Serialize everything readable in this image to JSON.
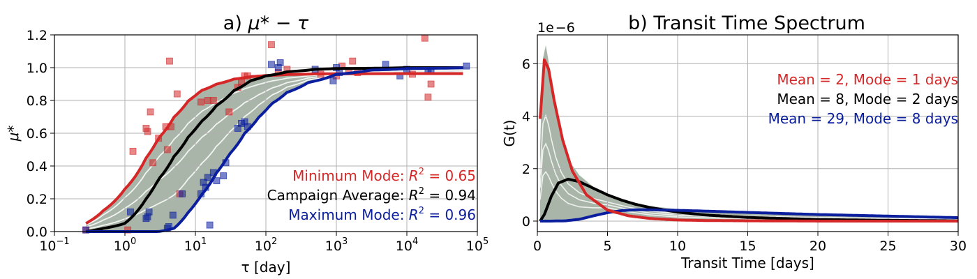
{
  "colors": {
    "red": "#d62728",
    "black": "#000000",
    "blue": "#0a1e9e",
    "band": "#a9b5a9"
  },
  "chart_data": [
    {
      "panel": "a",
      "type": "scatter",
      "title_prefix": "a) ",
      "title_math": "μ* − τ",
      "xlabel": "τ [day]",
      "ylabel": "μ*",
      "xscale": "log",
      "xlim": [
        0.1,
        100000
      ],
      "ylim": [
        0,
        1.2
      ],
      "grid": true,
      "xticks": [
        {
          "base": "10",
          "exp": "−1"
        },
        {
          "base": "10",
          "exp": "0"
        },
        {
          "base": "10",
          "exp": "1"
        },
        {
          "base": "10",
          "exp": "2"
        },
        {
          "base": "10",
          "exp": "3"
        },
        {
          "base": "10",
          "exp": "4"
        },
        {
          "base": "10",
          "exp": "5"
        }
      ],
      "yticks": [
        "0.0",
        "0.2",
        "0.4",
        "0.6",
        "0.8",
        "1.0",
        "1.2"
      ],
      "annotations": [
        {
          "label": "Minimum Mode: ",
          "value": "= 0.65",
          "color": "#d62728"
        },
        {
          "label": "Campaign Average: ",
          "value": "= 0.94",
          "color": "#000000"
        },
        {
          "label": "Maximum Mode: ",
          "value": "= 0.96",
          "color": "#0a1e9e"
        }
      ],
      "series": [
        {
          "color": "#d62728",
          "style": "line",
          "x": [
            0.28,
            0.5,
            1,
            2,
            3,
            5,
            8,
            12,
            20,
            35,
            60,
            100,
            200,
            500,
            1000,
            10000,
            70000
          ],
          "y": [
            0.05,
            0.13,
            0.26,
            0.45,
            0.57,
            0.7,
            0.8,
            0.86,
            0.9,
            0.93,
            0.945,
            0.952,
            0.958,
            0.962,
            0.963,
            0.964,
            0.964
          ]
        },
        {
          "color": "#000000",
          "style": "line",
          "x": [
            0.28,
            0.5,
            1,
            2,
            3,
            5,
            8,
            12,
            20,
            35,
            60,
            100,
            200,
            500,
            1000,
            10000,
            70000
          ],
          "y": [
            0.0,
            0.02,
            0.05,
            0.2,
            0.32,
            0.46,
            0.58,
            0.67,
            0.77,
            0.86,
            0.92,
            0.95,
            0.975,
            0.99,
            0.995,
            1.0,
            1.0
          ]
        },
        {
          "color": "#0a1e9e",
          "style": "line",
          "x": [
            0.28,
            1,
            3,
            5,
            8,
            12,
            20,
            30,
            50,
            80,
            120,
            200,
            400,
            1000,
            3000,
            10000,
            70000
          ],
          "y": [
            0.0,
            0.0,
            0.0,
            0.02,
            0.12,
            0.22,
            0.36,
            0.47,
            0.6,
            0.7,
            0.78,
            0.85,
            0.91,
            0.96,
            0.985,
            0.995,
            1.0
          ]
        },
        {
          "color": "#d62728",
          "style": "points",
          "x": [
            0.28,
            1.1,
            1.3,
            2.0,
            2.1,
            2.3,
            2.5,
            3.0,
            3.8,
            4.0,
            4.3,
            4.5,
            5.5,
            6.0,
            12,
            15,
            18,
            30,
            40,
            45,
            50,
            55,
            120,
            150,
            200,
            600,
            1000,
            1200,
            1500,
            1700,
            2000,
            12000,
            18000,
            20000,
            22000
          ],
          "y": [
            0.01,
            0.01,
            0.49,
            0.63,
            0.61,
            0.73,
            0.42,
            0.57,
            0.64,
            0.5,
            1.04,
            0.64,
            0.84,
            0.23,
            0.79,
            0.8,
            0.8,
            0.73,
            0.88,
            0.91,
            0.95,
            0.95,
            1.14,
            0.97,
            0.99,
            0.96,
            0.95,
            1.01,
            0.98,
            1.04,
            0.97,
            0.96,
            1.18,
            0.82,
            0.9
          ]
        },
        {
          "color": "#0a1e9e",
          "style": "points",
          "x": [
            0.28,
            1.2,
            2.0,
            2.1,
            2.2,
            4.0,
            4.2,
            4.8,
            6.5,
            12,
            13,
            14,
            15,
            16,
            18,
            20,
            25,
            27,
            40,
            45,
            50,
            55,
            120,
            150,
            160,
            500,
            900,
            1000,
            1100,
            5000,
            8000,
            10000,
            20000,
            22000,
            70000
          ],
          "y": [
            0.01,
            0.12,
            0.08,
            0.09,
            0.12,
            0.02,
            0.03,
            0.1,
            0.23,
            0.23,
            0.3,
            0.27,
            0.33,
            0.04,
            0.36,
            0.31,
            0.34,
            0.42,
            0.63,
            0.66,
            0.67,
            0.64,
            1.02,
            1.0,
            1.03,
            0.99,
            0.92,
            1.0,
            0.97,
            1.02,
            0.95,
            0.99,
            0.98,
            0.98,
            1.01
          ]
        }
      ]
    },
    {
      "panel": "b",
      "type": "line",
      "title": "b) Transit Time Spectrum",
      "xlabel": "Transit Time [days]",
      "ylabel": "G(t)",
      "offset_base": "1e",
      "offset_exp": "−6",
      "xlim": [
        0,
        30
      ],
      "ylim": [
        -0.4,
        7.1
      ],
      "grid": true,
      "xticks": [
        "0",
        "5",
        "10",
        "15",
        "20",
        "25",
        "30"
      ],
      "yticks": [
        "0",
        "2",
        "4",
        "6"
      ],
      "annotations": [
        {
          "text": "Mean = 2, Mode = 1 days",
          "color": "#d62728"
        },
        {
          "text": "Mean = 8, Mode = 2 days",
          "color": "#000000"
        },
        {
          "text": "Mean = 29, Mode = 8 days",
          "color": "#0a1e9e"
        }
      ],
      "series": [
        {
          "color": "#d62728",
          "x": [
            0.2,
            0.5,
            0.8,
            1.2,
            1.8,
            2.5,
            3.5,
            5,
            6.5,
            8,
            10,
            12,
            15,
            20,
            25,
            30
          ],
          "y": [
            3.9,
            6.15,
            5.8,
            4.6,
            3.1,
            1.9,
            1.0,
            0.42,
            0.2,
            0.1,
            0.04,
            0.02,
            0.01,
            0.0,
            0.0,
            0.0
          ]
        },
        {
          "color": "#000000",
          "x": [
            0.2,
            0.5,
            1,
            1.5,
            2.2,
            3,
            4,
            5,
            6,
            7,
            8,
            10,
            12,
            15,
            20,
            25,
            30
          ],
          "y": [
            0.0,
            0.25,
            0.95,
            1.45,
            1.6,
            1.5,
            1.25,
            1.0,
            0.8,
            0.64,
            0.52,
            0.34,
            0.23,
            0.14,
            0.06,
            0.03,
            0.01
          ]
        },
        {
          "color": "#0a1e9e",
          "x": [
            0.2,
            1,
            2,
            3,
            4,
            5,
            6,
            7,
            8,
            10,
            12,
            15,
            20,
            25,
            30
          ],
          "y": [
            0.0,
            0.0,
            0.01,
            0.07,
            0.2,
            0.32,
            0.4,
            0.43,
            0.43,
            0.41,
            0.38,
            0.33,
            0.25,
            0.19,
            0.13
          ]
        }
      ]
    }
  ]
}
